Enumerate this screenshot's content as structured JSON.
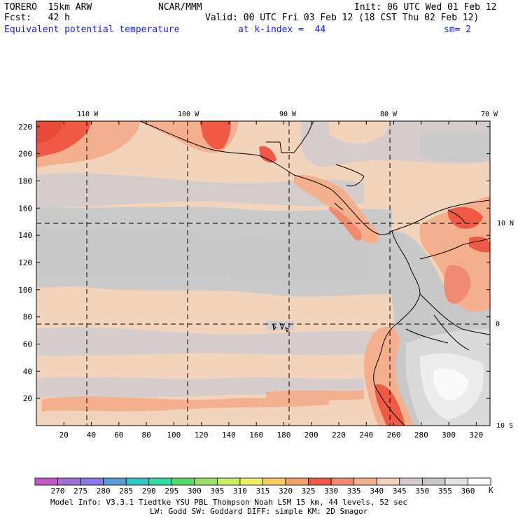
{
  "header": {
    "model": "TORERO  15km ARW",
    "org": "NCAR/MMM",
    "init": "Init: 06 UTC Wed 01 Feb 12",
    "fcst": "Fcst:   42 h",
    "valid": "Valid: 00 UTC Fri 03 Feb 12 (18 CST Thu 02 Feb 12)",
    "field": "Equivalent potential temperature",
    "level": "at k-index =  44",
    "smooth": "sm= 2"
  },
  "map": {
    "x_ticks": [
      "20",
      "40",
      "60",
      "80",
      "100",
      "120",
      "140",
      "160",
      "180",
      "200",
      "220",
      "240",
      "260",
      "280",
      "300",
      "320"
    ],
    "y_ticks": [
      "20",
      "40",
      "60",
      "80",
      "100",
      "120",
      "140",
      "160",
      "180",
      "200",
      "220"
    ],
    "lon_labels": [
      "110 W",
      "100 W",
      "90 W",
      "80 W",
      "70 W"
    ],
    "lat_labels": [
      "10 N",
      "0",
      "10 S"
    ]
  },
  "colorbar": {
    "values": [
      "270",
      "275",
      "280",
      "285",
      "290",
      "295",
      "300",
      "305",
      "310",
      "315",
      "320",
      "325",
      "330",
      "335",
      "340",
      "345",
      "350",
      "355",
      "360"
    ],
    "unit": "K",
    "colors": [
      "#cc55cc",
      "#a36ed8",
      "#8a78e8",
      "#5a9ad8",
      "#33c4c4",
      "#33d9a0",
      "#55d96a",
      "#99e066",
      "#ccee66",
      "#eeee66",
      "#f5cc66",
      "#f2a066",
      "#ee5a44",
      "#f08a70",
      "#f4b08e",
      "#f2d3bc",
      "#d6cccb",
      "#cacaca",
      "#e4e4e4",
      "#fafafa"
    ]
  },
  "footer": {
    "line1": "Model Info: V3.3.1   Tiedtke YSU PBL  Thompson    Noah LSM  15 km,   44 levels,   52 sec",
    "line2": "LW: Godd SW: Goddard DIFF: simple KM: 2D Smagor"
  }
}
